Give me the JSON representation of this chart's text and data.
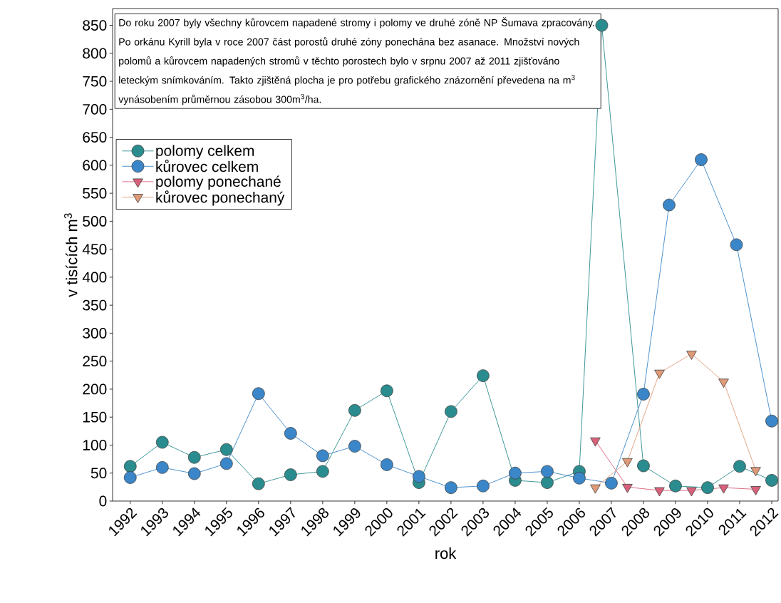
{
  "chart_data": {
    "type": "line",
    "xlabel": "rok",
    "ylabel": "v tisících m$^{3}$",
    "annotations": [
      "Do roku 2007 byly všechny kůrovcem napadené stromy i polomy ve druhé zóně NP Šumava zpracovány. Po orkánu Kyrill byla v roce 2007 část porostů druhé zóny ponechána bez asanace. Množství nových polomů a kůrovcem napadených stromů v těchto porostech bylo v srpnu 2007 až 2011 zjišťováno leteckým snímkováním. Takto zjištěná plocha je pro potřebu grafického znázornění převedena na m$^{3}$ vynásobením průměrnou zásobou 300m$^{3}$/ha."
    ],
    "xlim": [
      1991.45,
      2012.2
    ],
    "ylim": [
      0,
      880
    ],
    "xticks": [
      1992,
      1993,
      1994,
      1995,
      1996,
      1997,
      1998,
      1999,
      2000,
      2001,
      2002,
      2003,
      2004,
      2005,
      2006,
      2007,
      2008,
      2009,
      2010,
      2011,
      2012
    ],
    "yticks": [
      0,
      50,
      100,
      150,
      200,
      250,
      300,
      350,
      400,
      450,
      500,
      550,
      600,
      650,
      700,
      750,
      800,
      850
    ],
    "legend": "top left",
    "grid": false,
    "series": [
      {
        "name": "polomy celkem",
        "color": "#2a8c8e",
        "marker": "circle",
        "x": [
          1992,
          1993,
          1994,
          1995,
          1996,
          1997,
          1998,
          1999,
          2000,
          2001,
          2002,
          2003,
          2004,
          2005,
          2006,
          2006.7,
          2008,
          2009,
          2010,
          2011,
          2012
        ],
        "values": [
          62,
          105,
          78,
          92,
          31,
          47,
          53,
          162,
          197,
          33,
          160,
          224,
          37,
          33,
          53,
          850,
          63,
          27,
          24,
          62,
          37
        ]
      },
      {
        "name": "kůrovec celkem",
        "color": "#3a86c8",
        "marker": "circle",
        "x": [
          1992,
          1993,
          1994,
          1995,
          1996,
          1997,
          1998,
          1999,
          2000,
          2001,
          2002,
          2003,
          2004,
          2005,
          2006,
          2007,
          2008,
          2008.8,
          2009.8,
          2010.9,
          2012
        ],
        "values": [
          42,
          60,
          49,
          67,
          192,
          121,
          81,
          98,
          65,
          44,
          24,
          27,
          50,
          53,
          41,
          32,
          191,
          529,
          610,
          458,
          143
        ]
      },
      {
        "name": "polomy ponechané",
        "color": "#d9607a",
        "marker": "triangle",
        "x": [
          2006.5,
          2007.5,
          2008.5,
          2009.5,
          2010.5,
          2011.5
        ],
        "values": [
          108,
          25,
          19,
          19,
          24,
          21
        ]
      },
      {
        "name": "kůrovec ponechaný",
        "color": "#e09a78",
        "marker": "triangle",
        "x": [
          2006.5,
          2007.5,
          2008.5,
          2009.5,
          2010.5,
          2011.5
        ],
        "values": [
          24,
          71,
          229,
          263,
          213,
          55
        ]
      }
    ]
  }
}
